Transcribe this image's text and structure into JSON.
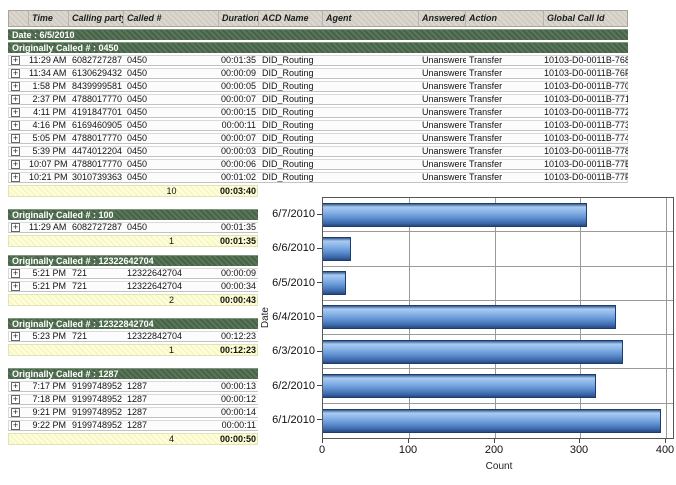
{
  "table": {
    "date_header": "Date : 6/5/2010",
    "columns": [
      {
        "key": "expand",
        "label": ""
      },
      {
        "key": "time",
        "label": "Time"
      },
      {
        "key": "calling-party",
        "label": "Calling party #"
      },
      {
        "key": "called",
        "label": "Called #"
      },
      {
        "key": "duration",
        "label": "Duration"
      },
      {
        "key": "acd-name",
        "label": "ACD Name"
      },
      {
        "key": "agent",
        "label": "Agent"
      },
      {
        "key": "answered",
        "label": "Answered"
      },
      {
        "key": "action",
        "label": "Action"
      },
      {
        "key": "global-call-id",
        "label": "Global Call Id"
      }
    ],
    "groups": [
      {
        "title": "Originally Called # : 0450",
        "full_width": true,
        "rows": [
          {
            "time": "11:29 AM",
            "calling": "6082727287",
            "called": "0450",
            "duration": "00:01:35",
            "acd": "DID_Routing",
            "agent": "",
            "answered": "Unanswered",
            "action": "Transfer",
            "global_id": "10103-D0-0011B-768"
          },
          {
            "time": "11:34 AM",
            "calling": "6130629432",
            "called": "0450",
            "duration": "00:00:09",
            "acd": "DID_Routing",
            "agent": "",
            "answered": "Unanswered",
            "action": "Transfer",
            "global_id": "10103-D0-0011B-76F"
          },
          {
            "time": "1:58 PM",
            "calling": "8439999581",
            "called": "0450",
            "duration": "00:00:05",
            "acd": "DID_Routing",
            "agent": "",
            "answered": "Unanswered",
            "action": "Transfer",
            "global_id": "10103-D0-0011B-770"
          },
          {
            "time": "2:37 PM",
            "calling": "4788017770",
            "called": "0450",
            "duration": "00:00:07",
            "acd": "DID_Routing",
            "agent": "",
            "answered": "Unanswered",
            "action": "Transfer",
            "global_id": "10103-D0-0011B-771"
          },
          {
            "time": "4:11 PM",
            "calling": "4191847701",
            "called": "0450",
            "duration": "00:00:15",
            "acd": "DID_Routing",
            "agent": "",
            "answered": "Unanswered",
            "action": "Transfer",
            "global_id": "10103-D0-0011B-772"
          },
          {
            "time": "4:16 PM",
            "calling": "6169460905",
            "called": "0450",
            "duration": "00:00:11",
            "acd": "DID_Routing",
            "agent": "",
            "answered": "Unanswered",
            "action": "Transfer",
            "global_id": "10103-D0-0011B-773"
          },
          {
            "time": "5:05 PM",
            "calling": "4788017770",
            "called": "0450",
            "duration": "00:00:07",
            "acd": "DID_Routing",
            "agent": "",
            "answered": "Unanswered",
            "action": "Transfer",
            "global_id": "10103-D0-0011B-774"
          },
          {
            "time": "5:39 PM",
            "calling": "4474012204",
            "called": "0450",
            "duration": "00:00:03",
            "acd": "DID_Routing",
            "agent": "",
            "answered": "Unanswered",
            "action": "Transfer",
            "global_id": "10103-D0-0011B-778"
          },
          {
            "time": "10:07 PM",
            "calling": "4788017770",
            "called": "0450",
            "duration": "00:00:06",
            "acd": "DID_Routing",
            "agent": "",
            "answered": "Unanswered",
            "action": "Transfer",
            "global_id": "10103-D0-0011B-77E"
          },
          {
            "time": "10:21 PM",
            "calling": "3010739363",
            "called": "0450",
            "duration": "00:01:02",
            "acd": "DID_Routing",
            "agent": "",
            "answered": "Unanswered",
            "action": "Transfer",
            "global_id": "10103-D0-0011B-77F"
          }
        ],
        "summary": {
          "count": "10",
          "duration": "00:03:40"
        }
      },
      {
        "title": "Originally Called # : 100",
        "full_width": false,
        "rows": [
          {
            "time": "11:29 AM",
            "calling": "6082727287",
            "called": "0450",
            "duration": "00:01:35"
          }
        ],
        "summary": {
          "count": "1",
          "duration": "00:01:35"
        }
      },
      {
        "title": "Originally Called # : 12322642704",
        "full_width": false,
        "rows": [
          {
            "time": "5:21 PM",
            "calling": "721",
            "called": "12322642704",
            "duration": "00:00:09"
          },
          {
            "time": "5:21 PM",
            "calling": "721",
            "called": "12322642704",
            "duration": "00:00:34"
          }
        ],
        "summary": {
          "count": "2",
          "duration": "00:00:43"
        }
      },
      {
        "title": "Originally Called # : 12322842704",
        "full_width": false,
        "rows": [
          {
            "time": "5:23 PM",
            "calling": "721",
            "called": "12322842704",
            "duration": "00:12:23"
          }
        ],
        "summary": {
          "count": "1",
          "duration": "00:12:23"
        }
      },
      {
        "title": "Originally Called # : 1287",
        "full_width": false,
        "rows": [
          {
            "time": "7:17 PM",
            "calling": "9199748952",
            "called": "1287",
            "duration": "00:00:13"
          },
          {
            "time": "7:18 PM",
            "calling": "9199748952",
            "called": "1287",
            "duration": "00:00:12"
          },
          {
            "time": "9:21 PM",
            "calling": "9199748952",
            "called": "1287",
            "duration": "00:00:14"
          },
          {
            "time": "9:22 PM",
            "calling": "9199748952",
            "called": "1287",
            "duration": "00:00:11"
          }
        ],
        "summary": {
          "count": "4",
          "duration": "00:00:50"
        }
      }
    ]
  },
  "icons": {
    "expand": "+"
  },
  "colors": {
    "group_header_green": "#50704e",
    "summary_yellow": "#ffffdc",
    "bar_blue_light": "#a9cbf2",
    "bar_blue_dark": "#27487c"
  },
  "chart_data": {
    "type": "bar",
    "orientation": "horizontal",
    "title": "",
    "xlabel": "Count",
    "ylabel": "Date",
    "categories": [
      "6/7/2010",
      "6/6/2010",
      "6/5/2010",
      "6/4/2010",
      "6/3/2010",
      "6/2/2010",
      "6/1/2010"
    ],
    "values": [
      308,
      33,
      27,
      342,
      350,
      318,
      394
    ],
    "xticks": [
      0,
      100,
      200,
      300,
      400
    ],
    "xlim": [
      0,
      408
    ],
    "grid": true,
    "legend": "none"
  }
}
